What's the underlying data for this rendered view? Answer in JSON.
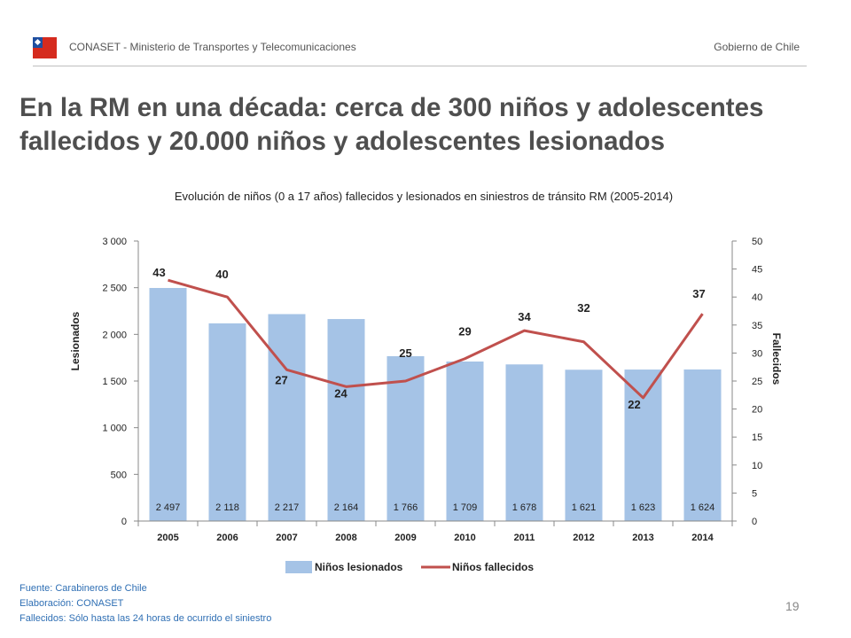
{
  "header": {
    "org": "CONASET - Ministerio de Transportes y Telecomunicaciones",
    "gov": "Gobierno de Chile"
  },
  "title": "En la RM en una década: cerca de 300 niños y adolescentes fallecidos y 20.000 niños y adolescentes lesionados",
  "footer": {
    "fuente": "Fuente: Carabineros de Chile",
    "elaboracion": "Elaboración: CONASET",
    "fallecidos": "Fallecidos: Sólo hasta las 24 horas de ocurrido el siniestro"
  },
  "page_number": "19",
  "colors": {
    "bar": "#a5c3e6",
    "line": "#c0504d",
    "title": "#4f4f4f",
    "footer": "#2f6fb4"
  },
  "chart_data": {
    "type": "bar",
    "title": "Evolución de niños (0 a 17 años) fallecidos y lesionados en siniestros de tránsito RM (2005-2014)",
    "categories": [
      "2005",
      "2006",
      "2007",
      "2008",
      "2009",
      "2010",
      "2011",
      "2012",
      "2013",
      "2014"
    ],
    "series": [
      {
        "name": "Niños lesionados",
        "type": "bar",
        "axis": "left",
        "values": [
          2497,
          2118,
          2217,
          2164,
          1766,
          1709,
          1678,
          1621,
          1623,
          1624
        ],
        "labels": [
          "2 497",
          "2 118",
          "2 217",
          "2 164",
          "1 766",
          "1 709",
          "1 678",
          "1 621",
          "1 623",
          "1 624"
        ]
      },
      {
        "name": "Niños fallecidos",
        "type": "line",
        "axis": "right",
        "values": [
          43,
          40,
          27,
          24,
          25,
          29,
          34,
          32,
          22,
          37
        ]
      }
    ],
    "ylabel": "Lesionados",
    "y2label": "Fallecidos",
    "ylim": [
      0,
      3000
    ],
    "y2lim": [
      0,
      50
    ],
    "yticks": [
      "0",
      "500",
      "1 000",
      "1 500",
      "2 000",
      "2 500",
      "3 000"
    ],
    "y2ticks": [
      "0",
      "5",
      "10",
      "15",
      "20",
      "25",
      "30",
      "35",
      "40",
      "45",
      "50"
    ],
    "legend": "bottom"
  }
}
